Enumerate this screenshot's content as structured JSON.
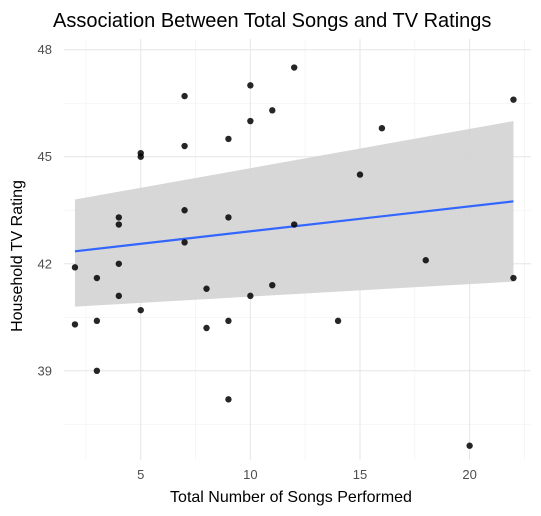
{
  "chart_data": {
    "type": "scatter",
    "title": "Association Between Total Songs and TV Ratings",
    "xlabel": "Total Number of Songs Performed",
    "ylabel": "Household TV Rating",
    "xlim": [
      1.5,
      22.8
    ],
    "ylim": [
      36.5,
      48.3
    ],
    "x_ticks": [
      5,
      10,
      15,
      20
    ],
    "y_ticks": [
      39,
      42,
      45,
      48
    ],
    "grid": true,
    "legend": "none",
    "points": [
      {
        "x": 2,
        "y": 41.9
      },
      {
        "x": 2,
        "y": 40.3
      },
      {
        "x": 3,
        "y": 41.6
      },
      {
        "x": 3,
        "y": 40.4
      },
      {
        "x": 3,
        "y": 39.0
      },
      {
        "x": 4,
        "y": 43.3
      },
      {
        "x": 4,
        "y": 43.1
      },
      {
        "x": 4,
        "y": 42.0
      },
      {
        "x": 4,
        "y": 41.1
      },
      {
        "x": 5,
        "y": 45.1
      },
      {
        "x": 5,
        "y": 45.0
      },
      {
        "x": 5,
        "y": 40.7
      },
      {
        "x": 7,
        "y": 46.7
      },
      {
        "x": 7,
        "y": 45.3
      },
      {
        "x": 7,
        "y": 43.5
      },
      {
        "x": 7,
        "y": 42.6
      },
      {
        "x": 8,
        "y": 41.3
      },
      {
        "x": 8,
        "y": 40.2
      },
      {
        "x": 9,
        "y": 45.5
      },
      {
        "x": 9,
        "y": 43.3
      },
      {
        "x": 9,
        "y": 40.4
      },
      {
        "x": 9,
        "y": 38.2
      },
      {
        "x": 10,
        "y": 47.0
      },
      {
        "x": 10,
        "y": 46.0
      },
      {
        "x": 10,
        "y": 41.1
      },
      {
        "x": 11,
        "y": 46.3
      },
      {
        "x": 11,
        "y": 41.4
      },
      {
        "x": 12,
        "y": 47.5
      },
      {
        "x": 12,
        "y": 43.1
      },
      {
        "x": 14,
        "y": 40.4
      },
      {
        "x": 15,
        "y": 44.5
      },
      {
        "x": 16,
        "y": 45.8
      },
      {
        "x": 18,
        "y": 42.1
      },
      {
        "x": 20,
        "y": 36.9
      },
      {
        "x": 22,
        "y": 46.6
      },
      {
        "x": 22,
        "y": 41.6
      }
    ],
    "trend": {
      "method": "linear",
      "x": [
        2,
        22
      ],
      "y": [
        42.35,
        43.75
      ],
      "band_lower": [
        40.8,
        41.5
      ],
      "band_upper": [
        43.8,
        46.0
      ]
    },
    "colors": {
      "point": "#000000",
      "line": "#3366ff",
      "band": "#d3d3d3"
    }
  }
}
